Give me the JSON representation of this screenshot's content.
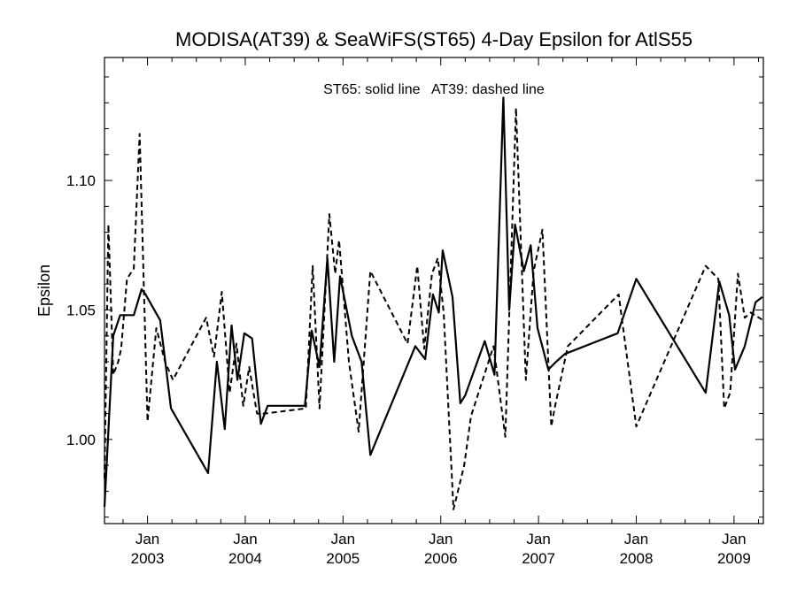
{
  "chart_data": {
    "type": "line",
    "title": "MODISA(AT39) & SeaWiFS(ST65) 4-Day Epsilon for AtlS55",
    "xlabel": "",
    "ylabel": "Epsilon",
    "annotation": "ST65: solid line   AT39: dashed line",
    "xlim": [
      2002.56,
      2009.3
    ],
    "ylim": [
      0.9675,
      1.1475
    ],
    "y_ticks": [
      1.0,
      1.05,
      1.1
    ],
    "y_tick_labels": [
      "1.00",
      "1.05",
      "1.10"
    ],
    "y_minor_step": 0.01,
    "x_ticks": [
      2003.0,
      2004.0,
      2005.0,
      2006.0,
      2007.0,
      2008.0,
      2009.0
    ],
    "x_tick_labels_top": [
      "Jan",
      "Jan",
      "Jan",
      "Jan",
      "Jan",
      "Jan",
      "Jan"
    ],
    "x_tick_labels_bottom": [
      "2003",
      "2004",
      "2005",
      "2006",
      "2007",
      "2008",
      "2009"
    ],
    "x_minor_step": 0.25,
    "series": [
      {
        "name": "ST65",
        "style": "solid",
        "x": [
          2002.56,
          2002.65,
          2002.72,
          2002.86,
          2002.94,
          2002.98,
          2003.13,
          2003.24,
          2003.62,
          2003.71,
          2003.79,
          2003.86,
          2003.92,
          2003.99,
          2004.07,
          2004.16,
          2004.23,
          2004.61,
          2004.68,
          2004.76,
          2004.84,
          2004.91,
          2004.97,
          2005.09,
          2005.19,
          2005.28,
          2005.74,
          2005.84,
          2005.92,
          2005.98,
          2006.02,
          2006.12,
          2006.2,
          2006.25,
          2006.45,
          2006.55,
          2006.64,
          2006.7,
          2006.76,
          2006.85,
          2006.92,
          2006.99,
          2007.1,
          2007.18,
          2007.27,
          2007.81,
          2008.0,
          2008.71,
          2008.85,
          2008.95,
          2009.01,
          2009.11,
          2009.22,
          2009.29
        ],
        "y": [
          0.974,
          1.04,
          1.048,
          1.048,
          1.058,
          1.056,
          1.046,
          1.012,
          0.987,
          1.03,
          1.004,
          1.044,
          1.023,
          1.041,
          1.039,
          1.006,
          1.013,
          1.013,
          1.042,
          1.028,
          1.07,
          1.03,
          1.063,
          1.04,
          1.03,
          0.994,
          1.036,
          1.031,
          1.056,
          1.049,
          1.073,
          1.055,
          1.014,
          1.017,
          1.038,
          1.025,
          1.132,
          1.05,
          1.083,
          1.065,
          1.075,
          1.043,
          1.027,
          1.03,
          1.033,
          1.041,
          1.062,
          1.018,
          1.061,
          1.048,
          1.027,
          1.036,
          1.053,
          1.055
        ]
      },
      {
        "name": "AT39",
        "style": "dashed",
        "x": [
          2002.56,
          2002.6,
          2002.65,
          2002.7,
          2002.73,
          2002.79,
          2002.86,
          2002.92,
          2003.0,
          2003.09,
          2003.18,
          2003.26,
          2003.6,
          2003.68,
          2003.76,
          2003.84,
          2003.91,
          2003.98,
          2004.04,
          2004.12,
          2004.2,
          2004.62,
          2004.69,
          2004.76,
          2004.86,
          2004.92,
          2004.96,
          2005.06,
          2005.16,
          2005.28,
          2005.66,
          2005.76,
          2005.83,
          2005.91,
          2005.97,
          2006.03,
          2006.13,
          2006.24,
          2006.31,
          2006.54,
          2006.66,
          2006.77,
          2006.87,
          2006.95,
          2007.04,
          2007.13,
          2007.17,
          2007.3,
          2007.82,
          2008.0,
          2008.71,
          2008.84,
          2008.9,
          2008.96,
          2009.04,
          2009.11,
          2009.17,
          2009.3
        ],
        "y": [
          0.985,
          1.083,
          1.025,
          1.03,
          1.035,
          1.062,
          1.066,
          1.118,
          1.007,
          1.043,
          1.03,
          1.023,
          1.047,
          1.032,
          1.057,
          1.018,
          1.037,
          1.013,
          1.028,
          1.01,
          1.01,
          1.012,
          1.067,
          1.012,
          1.087,
          1.064,
          1.077,
          1.03,
          1.003,
          1.065,
          1.037,
          1.067,
          1.035,
          1.064,
          1.07,
          1.049,
          0.973,
          0.99,
          1.009,
          1.036,
          1.001,
          1.128,
          1.023,
          1.065,
          1.081,
          1.005,
          1.013,
          1.036,
          1.056,
          1.005,
          1.067,
          1.062,
          1.012,
          1.018,
          1.064,
          1.047,
          1.049,
          1.046
        ]
      }
    ]
  }
}
